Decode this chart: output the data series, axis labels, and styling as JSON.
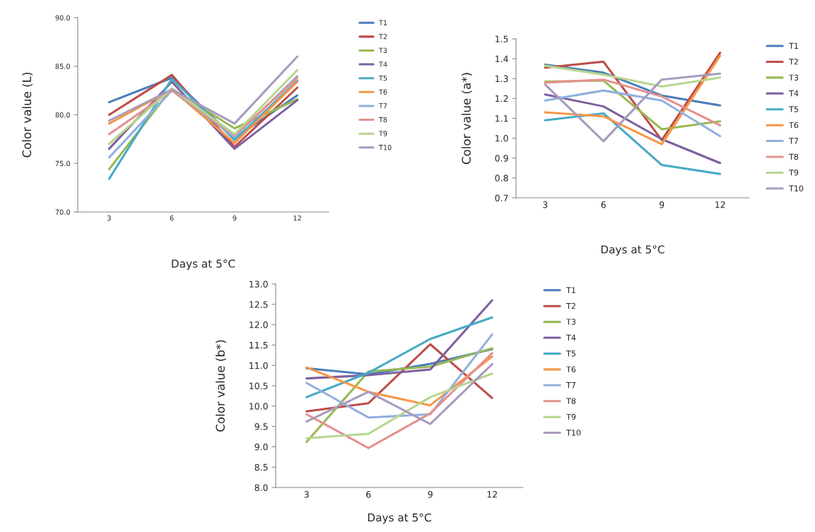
{
  "chart_data": [
    {
      "type": "line",
      "ylabel": "Color value (L)",
      "xlabel": "Days at 5°C",
      "categories": [
        "3",
        "6",
        "9",
        "12"
      ],
      "ylim": [
        70,
        90
      ],
      "yticks": [
        {
          "value": 70,
          "label": "70.0"
        },
        {
          "value": 75,
          "label": "75.0"
        },
        {
          "value": 80,
          "label": "80.0"
        },
        {
          "value": 85,
          "label": "85.0"
        },
        {
          "value": 90,
          "label": "90.0"
        }
      ],
      "grid": false,
      "legend": "right",
      "marker": "none",
      "line_style": "solid",
      "series": [
        {
          "name": "T1",
          "color": "#4a7ebb",
          "values": [
            81.3,
            83.8,
            77.6,
            82.0
          ]
        },
        {
          "name": "T2",
          "color": "#be4b48",
          "values": [
            80.0,
            84.1,
            76.7,
            82.8
          ]
        },
        {
          "name": "T3",
          "color": "#98b954",
          "values": [
            74.4,
            82.7,
            78.6,
            81.6
          ]
        },
        {
          "name": "T4",
          "color": "#7d60a0",
          "values": [
            76.5,
            83.4,
            76.5,
            81.5
          ]
        },
        {
          "name": "T5",
          "color": "#46aac5",
          "values": [
            73.4,
            83.7,
            77.4,
            83.5
          ]
        },
        {
          "name": "T6",
          "color": "#f79646",
          "values": [
            79.1,
            82.6,
            77.1,
            83.4
          ]
        },
        {
          "name": "T7",
          "color": "#8fb0de",
          "values": [
            75.6,
            82.5,
            77.7,
            84.0
          ]
        },
        {
          "name": "T8",
          "color": "#e4918f",
          "values": [
            78.0,
            82.5,
            77.9,
            83.8
          ]
        },
        {
          "name": "T9",
          "color": "#b6d68d",
          "values": [
            77.0,
            82.7,
            78.0,
            84.6
          ]
        },
        {
          "name": "T10",
          "color": "#a99bbd",
          "values": [
            79.4,
            82.6,
            79.1,
            86.0
          ]
        }
      ]
    },
    {
      "type": "line",
      "ylabel": "Color value (a*)",
      "xlabel": "Days at 5°C",
      "categories": [
        "3",
        "6",
        "9",
        "12"
      ],
      "ylim": [
        0.7,
        1.5
      ],
      "yticks": [
        0.7,
        0.8,
        0.9,
        {
          "value": 1.0,
          "label": "1.0"
        },
        1.1,
        1.2,
        1.3,
        1.4,
        1.5
      ],
      "grid": false,
      "legend": "right",
      "marker": "none",
      "line_style": "solid",
      "series": [
        {
          "name": "T1",
          "color": "#4a7ebb",
          "values": [
            1.37,
            1.33,
            1.215,
            1.165
          ]
        },
        {
          "name": "T2",
          "color": "#be4b48",
          "values": [
            1.355,
            1.385,
            0.99,
            1.43
          ]
        },
        {
          "name": "T3",
          "color": "#98b954",
          "values": [
            1.285,
            1.29,
            1.045,
            1.085
          ]
        },
        {
          "name": "T4",
          "color": "#7d60a0",
          "values": [
            1.22,
            1.16,
            0.995,
            0.875
          ]
        },
        {
          "name": "T5",
          "color": "#46aac5",
          "values": [
            1.09,
            1.125,
            0.865,
            0.82
          ]
        },
        {
          "name": "T6",
          "color": "#f79646",
          "values": [
            1.13,
            1.11,
            0.97,
            1.415
          ]
        },
        {
          "name": "T7",
          "color": "#8fb0de",
          "values": [
            1.19,
            1.24,
            1.19,
            1.01
          ]
        },
        {
          "name": "T8",
          "color": "#e4918f",
          "values": [
            1.28,
            1.295,
            1.21,
            1.065
          ]
        },
        {
          "name": "T9",
          "color": "#b6d68d",
          "values": [
            1.365,
            1.32,
            1.26,
            1.305
          ]
        },
        {
          "name": "T10",
          "color": "#a99bbd",
          "values": [
            1.27,
            0.985,
            1.295,
            1.325
          ]
        }
      ]
    },
    {
      "type": "line",
      "ylabel": "Color value (b*)",
      "xlabel": "Days at 5°C",
      "categories": [
        "3",
        "6",
        "9",
        "12"
      ],
      "ylim": [
        8.0,
        13.0
      ],
      "yticks": [
        {
          "value": 8,
          "label": "8.0"
        },
        {
          "value": 8.5,
          "label": "8.5"
        },
        {
          "value": 9,
          "label": "9.0"
        },
        {
          "value": 9.5,
          "label": "9.5"
        },
        {
          "value": 10,
          "label": "10.0"
        },
        {
          "value": 10.5,
          "label": "10.5"
        },
        {
          "value": 11,
          "label": "11.0"
        },
        {
          "value": 11.5,
          "label": "11.5"
        },
        {
          "value": 12,
          "label": "12.0"
        },
        {
          "value": 12.5,
          "label": "12.5"
        },
        {
          "value": 13,
          "label": "13.0"
        }
      ],
      "grid": false,
      "legend": "right",
      "marker": "none",
      "line_style": "solid",
      "series": [
        {
          "name": "T1",
          "color": "#4a7ebb",
          "values": [
            10.93,
            10.78,
            11.04,
            11.4
          ]
        },
        {
          "name": "T2",
          "color": "#be4b48",
          "values": [
            9.87,
            10.07,
            11.52,
            10.2
          ]
        },
        {
          "name": "T3",
          "color": "#98b954",
          "values": [
            9.12,
            10.85,
            10.97,
            11.42
          ]
        },
        {
          "name": "T4",
          "color": "#7d60a0",
          "values": [
            10.68,
            10.76,
            10.9,
            12.6
          ]
        },
        {
          "name": "T5",
          "color": "#46aac5",
          "values": [
            10.22,
            10.82,
            11.65,
            12.18
          ]
        },
        {
          "name": "T6",
          "color": "#f79646",
          "values": [
            10.95,
            10.35,
            10.02,
            11.22
          ]
        },
        {
          "name": "T7",
          "color": "#8fb0de",
          "values": [
            10.57,
            9.72,
            9.8,
            11.76
          ]
        },
        {
          "name": "T8",
          "color": "#e4918f",
          "values": [
            9.8,
            8.97,
            9.82,
            11.3
          ]
        },
        {
          "name": "T9",
          "color": "#b6d68d",
          "values": [
            9.21,
            9.32,
            10.22,
            10.8
          ]
        },
        {
          "name": "T10",
          "color": "#a99bbd",
          "values": [
            9.62,
            10.35,
            9.56,
            11.03
          ]
        }
      ]
    }
  ]
}
